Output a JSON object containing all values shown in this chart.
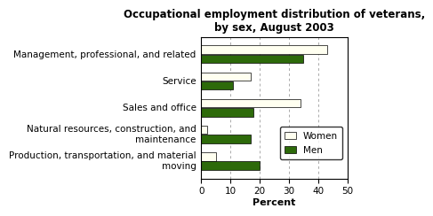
{
  "title": "Occupational employment distribution of veterans,\nby sex, August 2003",
  "categories": [
    "Management, professional, and related",
    "Service",
    "Sales and office",
    "Natural resources, construction, and\nmaintenance",
    "Production, transportation, and material\nmoving"
  ],
  "women_values": [
    43,
    17,
    34,
    2,
    5
  ],
  "men_values": [
    35,
    11,
    18,
    17,
    20
  ],
  "women_color": "#FFFFF0",
  "men_color": "#2D6A0A",
  "xlim": [
    0,
    50
  ],
  "xticks": [
    0,
    10,
    20,
    30,
    40,
    50
  ],
  "xlabel": "Percent",
  "bar_height": 0.32,
  "background_color": "#ffffff",
  "grid_color": "#aaaaaa",
  "legend_labels": [
    "Women",
    "Men"
  ],
  "title_fontsize": 8.5,
  "tick_fontsize": 7.5,
  "label_fontsize": 7.5,
  "border_color": "#888888"
}
